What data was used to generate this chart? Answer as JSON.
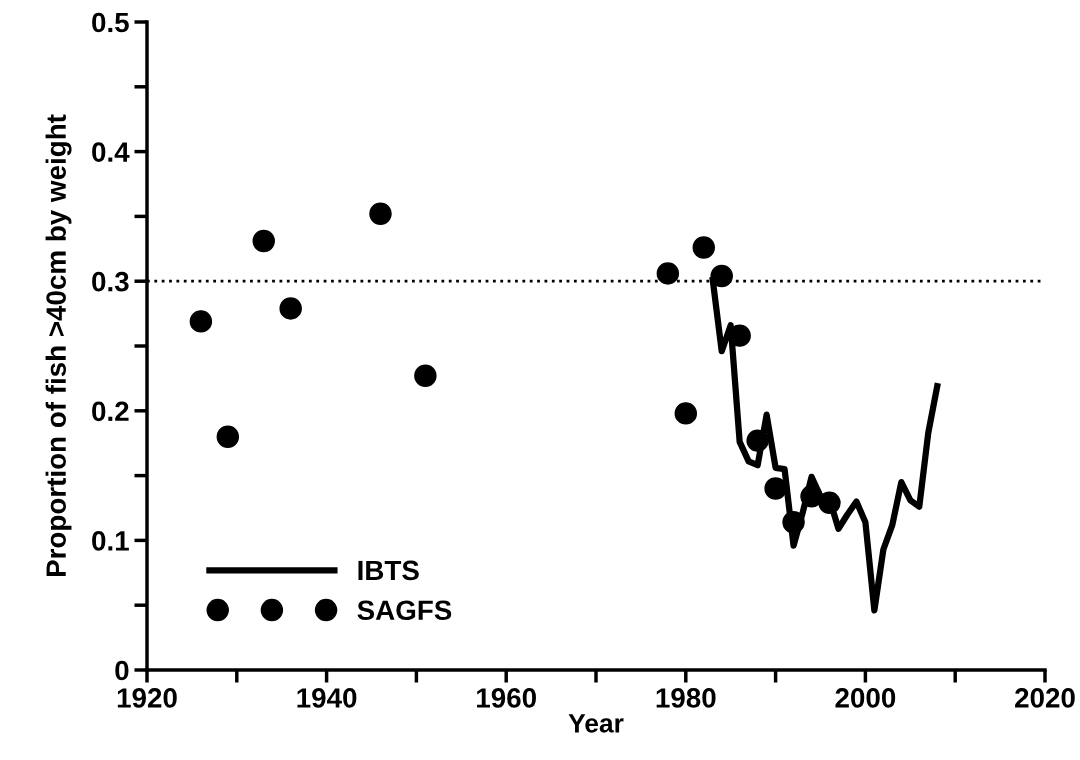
{
  "chart_data": {
    "type": "line",
    "xlabel": "Year",
    "ylabel": "Proportion of fish >40cm by weight",
    "xlim": [
      1920,
      2020
    ],
    "ylim": [
      0,
      0.5
    ],
    "xticks": [
      1920,
      {
        "value": 1930,
        "label": null
      },
      1940,
      {
        "value": 1950,
        "label": null
      },
      1960,
      {
        "value": 1970,
        "label": null
      },
      1980,
      {
        "value": 1990,
        "label": null
      },
      2000,
      {
        "value": 2010,
        "label": null
      },
      2020
    ],
    "yticks": [
      {
        "value": 0,
        "label": "0"
      },
      {
        "value": 0.05,
        "label": null
      },
      0.1,
      {
        "value": 0.15,
        "label": null
      },
      0.2,
      {
        "value": 0.25,
        "label": null
      },
      0.3,
      {
        "value": 0.35,
        "label": null
      },
      0.4,
      {
        "value": 0.45,
        "label": null
      },
      0.5
    ],
    "series": [
      {
        "name": "IBTS",
        "color": "#000000",
        "x": [
          1983,
          1984,
          1985,
          1986,
          1987,
          1988,
          1989,
          1990,
          1991,
          1992,
          1993,
          1994,
          1995,
          1996,
          1997,
          1998,
          1999,
          2000,
          2001,
          2002,
          2003,
          2004,
          2005,
          2006,
          2007,
          2008
        ],
        "values": [
          0.301,
          0.246,
          0.266,
          0.176,
          0.161,
          0.158,
          0.197,
          0.156,
          0.155,
          0.096,
          0.121,
          0.149,
          0.134,
          0.132,
          0.109,
          0.12,
          0.13,
          0.114,
          0.046,
          0.093,
          0.112,
          0.145,
          0.131,
          0.126,
          0.183,
          0.219
        ]
      },
      {
        "name": "SAGFS",
        "type": "scatter",
        "color": "#000000",
        "marker": "circle",
        "x": [
          1926,
          1929,
          1933,
          1936,
          1946,
          1951,
          1978,
          1980,
          1982,
          1984,
          1986,
          1988,
          1990,
          1992,
          1994,
          1996
        ],
        "values": [
          0.269,
          0.18,
          0.331,
          0.279,
          0.352,
          0.227,
          0.306,
          0.198,
          0.326,
          0.304,
          0.258,
          0.177,
          0.14,
          0.114,
          0.134,
          0.129
        ]
      }
    ],
    "ref_lines": [
      {
        "axis": "y",
        "value": 0.3,
        "color": "#000000",
        "line_style": "dotted"
      }
    ],
    "grid": false,
    "legend": "bottom left"
  }
}
